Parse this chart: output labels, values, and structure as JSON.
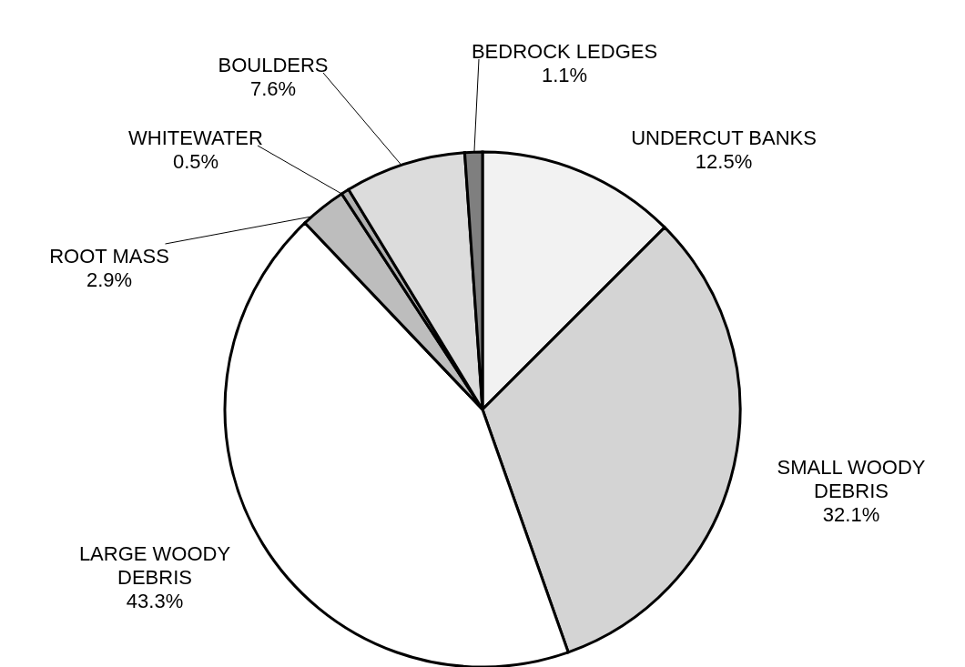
{
  "chart_data": {
    "type": "pie",
    "categories": [
      "UNDERCUT BANKS",
      "SMALL WOODY\nDEBRIS",
      "LARGE WOODY\nDEBRIS",
      "ROOT MASS",
      "WHITEWATER",
      "BOULDERS",
      "BEDROCK LEDGES"
    ],
    "values": [
      12.5,
      32.1,
      43.3,
      2.9,
      0.5,
      7.6,
      1.1
    ],
    "value_labels": [
      "12.5%",
      "32.1%",
      "43.3%",
      "2.9%",
      "0.5%",
      "7.6%",
      "1.1%"
    ],
    "colors": [
      "#f2f2f2",
      "#d4d4d4",
      "#ffffff",
      "#bdbdbd",
      "#b0b0b0",
      "#dcdcdc",
      "#7f7f7f"
    ]
  }
}
